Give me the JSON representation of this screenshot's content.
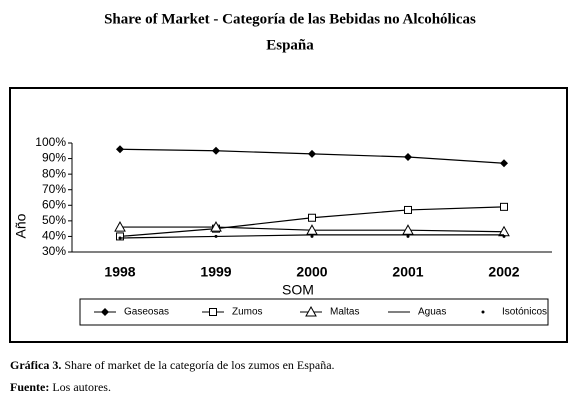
{
  "chart_data": {
    "type": "line",
    "title": "Share of Market - Categoría de las Bebidas no Alcohólicas",
    "subtitle": "España",
    "x_label": "SOM",
    "y_label": "Año",
    "categories": [
      "1998",
      "1999",
      "2000",
      "2001",
      "2002"
    ],
    "ylim": [
      30,
      100
    ],
    "yticks": [
      {
        "value": 30,
        "label": "30%"
      },
      {
        "value": 40,
        "label": "40%"
      },
      {
        "value": 50,
        "label": "50%"
      },
      {
        "value": 60,
        "label": "60%"
      },
      {
        "value": 70,
        "label": "70%"
      },
      {
        "value": 80,
        "label": "80%"
      },
      {
        "value": 90,
        "label": "90%"
      },
      {
        "value": 100,
        "label": "100%"
      }
    ],
    "grid": false,
    "series": [
      {
        "name": "Gaseosas",
        "color": "#000000",
        "marker": "diamond",
        "values": [
          96,
          95,
          93,
          91,
          87
        ]
      },
      {
        "name": "Zumos",
        "color": "#000000",
        "marker": "square",
        "values": [
          40,
          45,
          52,
          57,
          59
        ]
      },
      {
        "name": "Maltas",
        "color": "#000000",
        "marker": "triangle",
        "values": [
          46,
          46,
          44,
          44,
          43
        ]
      },
      {
        "name": "Aguas",
        "color": "#000000",
        "marker": "none",
        "values": [
          39,
          40,
          41,
          41,
          41
        ]
      },
      {
        "name": "Isotónicos",
        "color": "#000000",
        "marker": "star",
        "values": [
          39,
          40,
          40,
          40,
          40
        ]
      }
    ]
  },
  "caption": {
    "label": "Gráfica 3.",
    "text": " Share of market de la categoría de los zumos en España."
  },
  "source": {
    "label": "Fuente:",
    "text": " Los autores."
  }
}
